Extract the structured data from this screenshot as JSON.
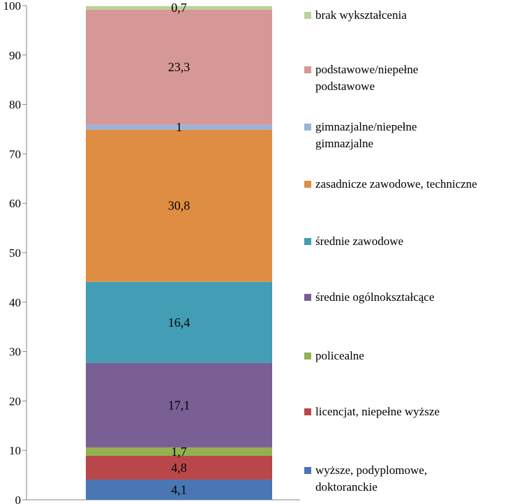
{
  "chart_data": {
    "type": "bar",
    "stacked": true,
    "categories": [
      ""
    ],
    "ylim": [
      0,
      100
    ],
    "yticks": [
      0,
      10,
      20,
      30,
      40,
      50,
      60,
      70,
      80,
      90,
      100
    ],
    "grid": false,
    "legend_position": "right",
    "series": [
      {
        "name": "wyższe, podyplomowe, doktoranckie",
        "values": [
          4.1
        ],
        "label": "4,1",
        "color": "#4a77b4"
      },
      {
        "name": "licencjat, niepełne wyższe",
        "values": [
          4.8
        ],
        "label": "4,8",
        "color": "#b9474a"
      },
      {
        "name": "policealne",
        "values": [
          1.7
        ],
        "label": "1,7",
        "color": "#93b150"
      },
      {
        "name": "średnie ogólnokształcące",
        "values": [
          17.1
        ],
        "label": "17,1",
        "color": "#7a5f95"
      },
      {
        "name": "średnie zawodowe",
        "values": [
          16.4
        ],
        "label": "16,4",
        "color": "#439db5"
      },
      {
        "name": "zasadnicze zawodowe, techniczne",
        "values": [
          30.8
        ],
        "label": "30,8",
        "color": "#e08d44"
      },
      {
        "name": "gimnazjalne/niepełne gimnazjalne",
        "values": [
          1.0
        ],
        "label": "1",
        "color": "#99b4d8"
      },
      {
        "name": "podstawowe/niepełne podstawowe",
        "values": [
          23.3
        ],
        "label": "23,3",
        "color": "#d69896"
      },
      {
        "name": "brak wykształcenia",
        "values": [
          0.7
        ],
        "label": "0,7",
        "color": "#b9d297"
      }
    ],
    "legend_order": [
      8,
      7,
      6,
      5,
      4,
      3,
      2,
      1,
      0
    ],
    "legend_lines": [
      [
        "brak wykształcenia"
      ],
      [
        "podstawowe/niepełne",
        "podstawowe"
      ],
      [
        "gimnazjalne/niepełne",
        "gimnazjalne"
      ],
      [
        "zasadnicze zawodowe, techniczne"
      ],
      [
        "średnie zawodowe"
      ],
      [
        "średnie ogólnokształcące"
      ],
      [
        "policealne"
      ],
      [
        "licencjat, niepełne wyższe"
      ],
      [
        "wyższe, podyplomowe,",
        "doktoranckie"
      ]
    ]
  }
}
